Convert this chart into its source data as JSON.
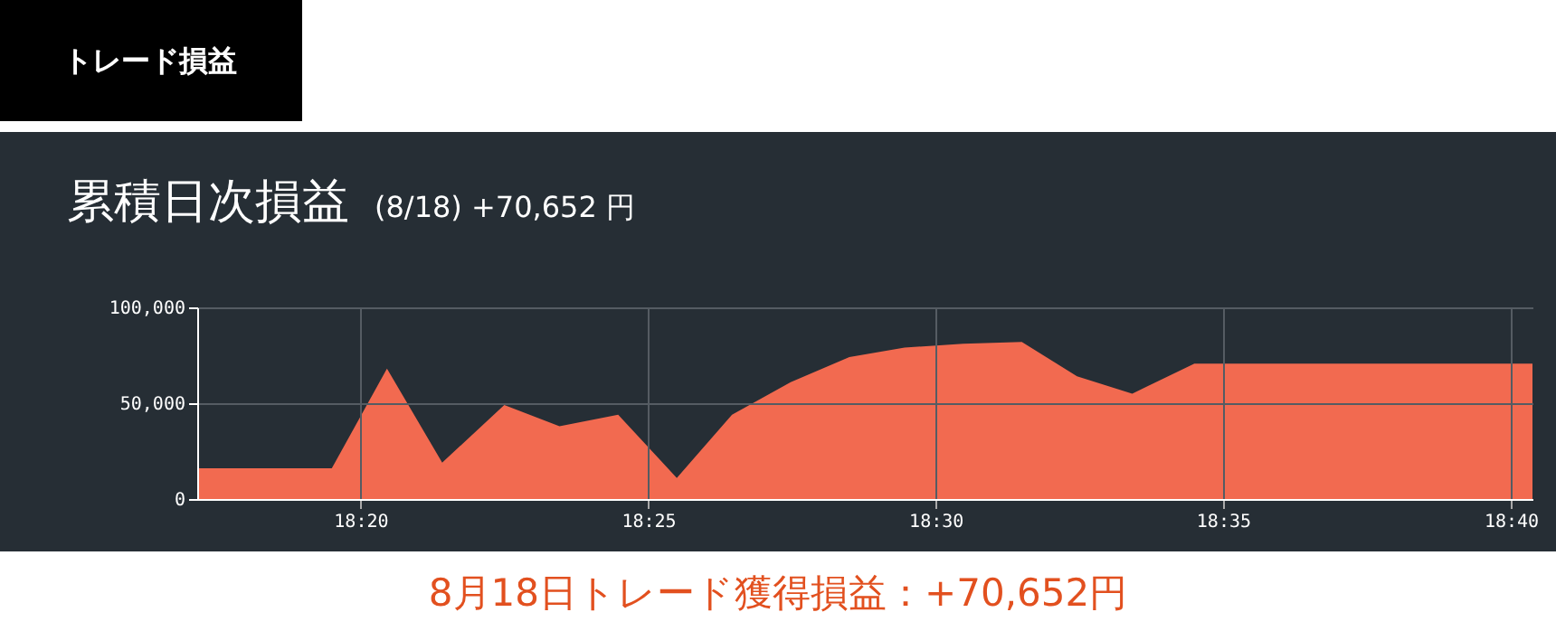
{
  "chart_data": {
    "type": "area",
    "title": "累積日次損益",
    "subtitle": "(8/18) +70,652 円",
    "annotations": [
      "トレード損益",
      "8月18日トレード獲得損益：+70,652円"
    ],
    "x": [
      18.286,
      18.325,
      18.341,
      18.357,
      18.375,
      18.391,
      18.408,
      18.425,
      18.441,
      18.458,
      18.475,
      18.491,
      18.508,
      18.525,
      18.541,
      18.557,
      18.575,
      18.673
    ],
    "series": [
      {
        "color": "#f26a50",
        "values": [
          16000,
          16000,
          68000,
          19000,
          49000,
          38000,
          44000,
          11000,
          44000,
          61000,
          74000,
          79000,
          81000,
          82000,
          64000,
          55000,
          70652,
          70652
        ]
      }
    ],
    "xlim": [
      18.286,
      18.673
    ],
    "xticks": [
      {
        "value": 18.3333,
        "label": "18:20"
      },
      {
        "value": 18.4167,
        "label": "18:25"
      },
      {
        "value": 18.5,
        "label": "18:30"
      },
      {
        "value": 18.5833,
        "label": "18:35"
      },
      {
        "value": 18.6667,
        "label": "18:40"
      }
    ],
    "ylim": [
      0,
      100000
    ],
    "yticks": [
      0,
      {
        "value": 50000,
        "label": "50,000"
      },
      {
        "value": 100000,
        "label": "100,000"
      }
    ],
    "grid": true
  }
}
